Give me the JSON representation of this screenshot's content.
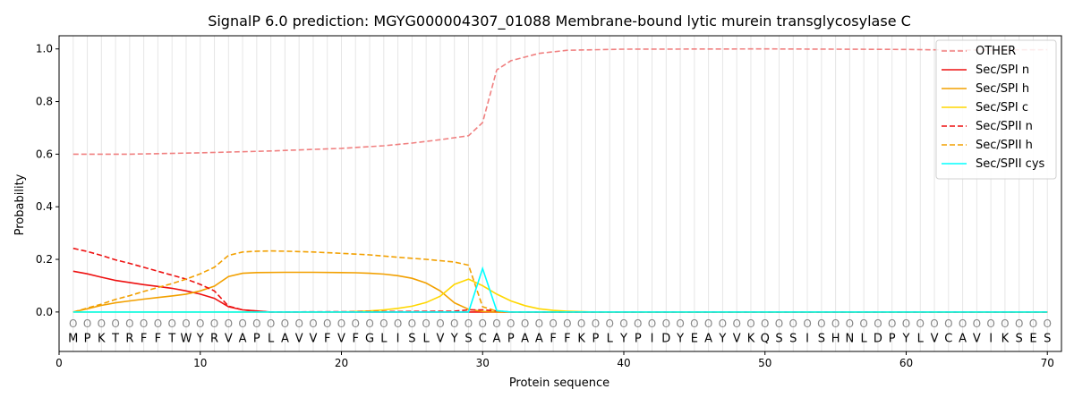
{
  "chart_data": {
    "type": "line",
    "title": "SignalP 6.0 prediction: MGYG000004307_01088 Membrane-bound lytic murein transglycosylase C",
    "xlabel": "Protein sequence",
    "ylabel": "Probability",
    "xlim": [
      0,
      71
    ],
    "ylim": [
      -0.15,
      1.05
    ],
    "xticks": [
      0,
      10,
      20,
      30,
      40,
      50,
      60,
      70
    ],
    "yticks": [
      0.0,
      0.2,
      0.4,
      0.6,
      0.8,
      1.0
    ],
    "grid": "vertical lines at each residue",
    "legend_position": "top-right",
    "sequence": "MPKTRFFTWYRVAPLAVVFVFGLISLVYSCAPAAFFKPLYPIDYEAYVKQSSISHNLDPYLVCAVIKSES",
    "region_marker": "O",
    "series": [
      {
        "name": "OTHER",
        "color": "#f08080",
        "dash": "dashed",
        "points": [
          [
            1,
            0.6
          ],
          [
            5,
            0.6
          ],
          [
            10,
            0.605
          ],
          [
            15,
            0.612
          ],
          [
            20,
            0.622
          ],
          [
            23,
            0.632
          ],
          [
            25,
            0.642
          ],
          [
            27,
            0.655
          ],
          [
            29,
            0.67
          ],
          [
            30,
            0.72
          ],
          [
            31,
            0.92
          ],
          [
            32,
            0.955
          ],
          [
            34,
            0.983
          ],
          [
            36,
            0.995
          ],
          [
            40,
            0.999
          ],
          [
            50,
            1.0
          ],
          [
            60,
            0.998
          ],
          [
            63,
            0.996
          ],
          [
            66,
            0.996
          ],
          [
            70,
            0.997
          ]
        ]
      },
      {
        "name": "Sec/SPI n",
        "color": "#ee1111",
        "dash": "solid",
        "points": [
          [
            1,
            0.155
          ],
          [
            2,
            0.145
          ],
          [
            3,
            0.132
          ],
          [
            4,
            0.12
          ],
          [
            5,
            0.112
          ],
          [
            6,
            0.104
          ],
          [
            7,
            0.097
          ],
          [
            8,
            0.09
          ],
          [
            9,
            0.08
          ],
          [
            10,
            0.068
          ],
          [
            11,
            0.052
          ],
          [
            12,
            0.02
          ],
          [
            13,
            0.008
          ],
          [
            14,
            0.004
          ],
          [
            15,
            0.0
          ],
          [
            70,
            0.0
          ]
        ]
      },
      {
        "name": "Sec/SPI h",
        "color": "#f2a000",
        "dash": "solid",
        "points": [
          [
            1,
            0.0
          ],
          [
            2,
            0.012
          ],
          [
            3,
            0.025
          ],
          [
            4,
            0.035
          ],
          [
            5,
            0.042
          ],
          [
            6,
            0.049
          ],
          [
            7,
            0.055
          ],
          [
            8,
            0.061
          ],
          [
            9,
            0.068
          ],
          [
            10,
            0.08
          ],
          [
            11,
            0.098
          ],
          [
            12,
            0.135
          ],
          [
            13,
            0.147
          ],
          [
            14,
            0.15
          ],
          [
            16,
            0.151
          ],
          [
            18,
            0.151
          ],
          [
            20,
            0.15
          ],
          [
            21,
            0.149
          ],
          [
            22,
            0.147
          ],
          [
            23,
            0.144
          ],
          [
            24,
            0.138
          ],
          [
            25,
            0.128
          ],
          [
            26,
            0.11
          ],
          [
            27,
            0.08
          ],
          [
            28,
            0.035
          ],
          [
            29,
            0.01
          ],
          [
            30,
            0.002
          ],
          [
            31,
            0.0
          ],
          [
            70,
            0.0
          ]
        ]
      },
      {
        "name": "Sec/SPI c",
        "color": "#ffd700",
        "dash": "solid",
        "points": [
          [
            1,
            0.0
          ],
          [
            20,
            0.0
          ],
          [
            21,
            0.002
          ],
          [
            22,
            0.004
          ],
          [
            23,
            0.008
          ],
          [
            24,
            0.014
          ],
          [
            25,
            0.022
          ],
          [
            26,
            0.036
          ],
          [
            27,
            0.06
          ],
          [
            28,
            0.105
          ],
          [
            29,
            0.125
          ],
          [
            30,
            0.1
          ],
          [
            31,
            0.068
          ],
          [
            32,
            0.042
          ],
          [
            33,
            0.024
          ],
          [
            34,
            0.012
          ],
          [
            35,
            0.006
          ],
          [
            36,
            0.003
          ],
          [
            38,
            0.0
          ],
          [
            70,
            0.0
          ]
        ]
      },
      {
        "name": "Sec/SPII n",
        "color": "#ee1111",
        "dash": "dashed",
        "points": [
          [
            1,
            0.242
          ],
          [
            2,
            0.23
          ],
          [
            3,
            0.215
          ],
          [
            4,
            0.198
          ],
          [
            5,
            0.185
          ],
          [
            6,
            0.17
          ],
          [
            7,
            0.155
          ],
          [
            8,
            0.14
          ],
          [
            9,
            0.125
          ],
          [
            10,
            0.105
          ],
          [
            11,
            0.08
          ],
          [
            12,
            0.022
          ],
          [
            13,
            0.008
          ],
          [
            14,
            0.003
          ],
          [
            15,
            0.0
          ],
          [
            28,
            0.003
          ],
          [
            29,
            0.008
          ],
          [
            30,
            0.008
          ],
          [
            31,
            0.004
          ],
          [
            32,
            0.0
          ],
          [
            70,
            0.0
          ]
        ]
      },
      {
        "name": "Sec/SPII h",
        "color": "#f2a000",
        "dash": "dashed",
        "points": [
          [
            1,
            0.0
          ],
          [
            2,
            0.015
          ],
          [
            3,
            0.03
          ],
          [
            4,
            0.048
          ],
          [
            5,
            0.062
          ],
          [
            6,
            0.078
          ],
          [
            7,
            0.093
          ],
          [
            8,
            0.108
          ],
          [
            9,
            0.125
          ],
          [
            10,
            0.145
          ],
          [
            11,
            0.17
          ],
          [
            12,
            0.215
          ],
          [
            13,
            0.228
          ],
          [
            14,
            0.231
          ],
          [
            15,
            0.232
          ],
          [
            16,
            0.231
          ],
          [
            18,
            0.228
          ],
          [
            20,
            0.223
          ],
          [
            22,
            0.217
          ],
          [
            24,
            0.208
          ],
          [
            26,
            0.2
          ],
          [
            28,
            0.19
          ],
          [
            29,
            0.178
          ],
          [
            30,
            0.02
          ],
          [
            31,
            0.003
          ],
          [
            32,
            0.0
          ],
          [
            70,
            0.0
          ]
        ]
      },
      {
        "name": "Sec/SPII cys",
        "color": "#00ffff",
        "dash": "solid",
        "points": [
          [
            1,
            0.0
          ],
          [
            29,
            0.0
          ],
          [
            30,
            0.165
          ],
          [
            31,
            0.005
          ],
          [
            32,
            0.0
          ],
          [
            70,
            0.0
          ]
        ]
      }
    ]
  }
}
